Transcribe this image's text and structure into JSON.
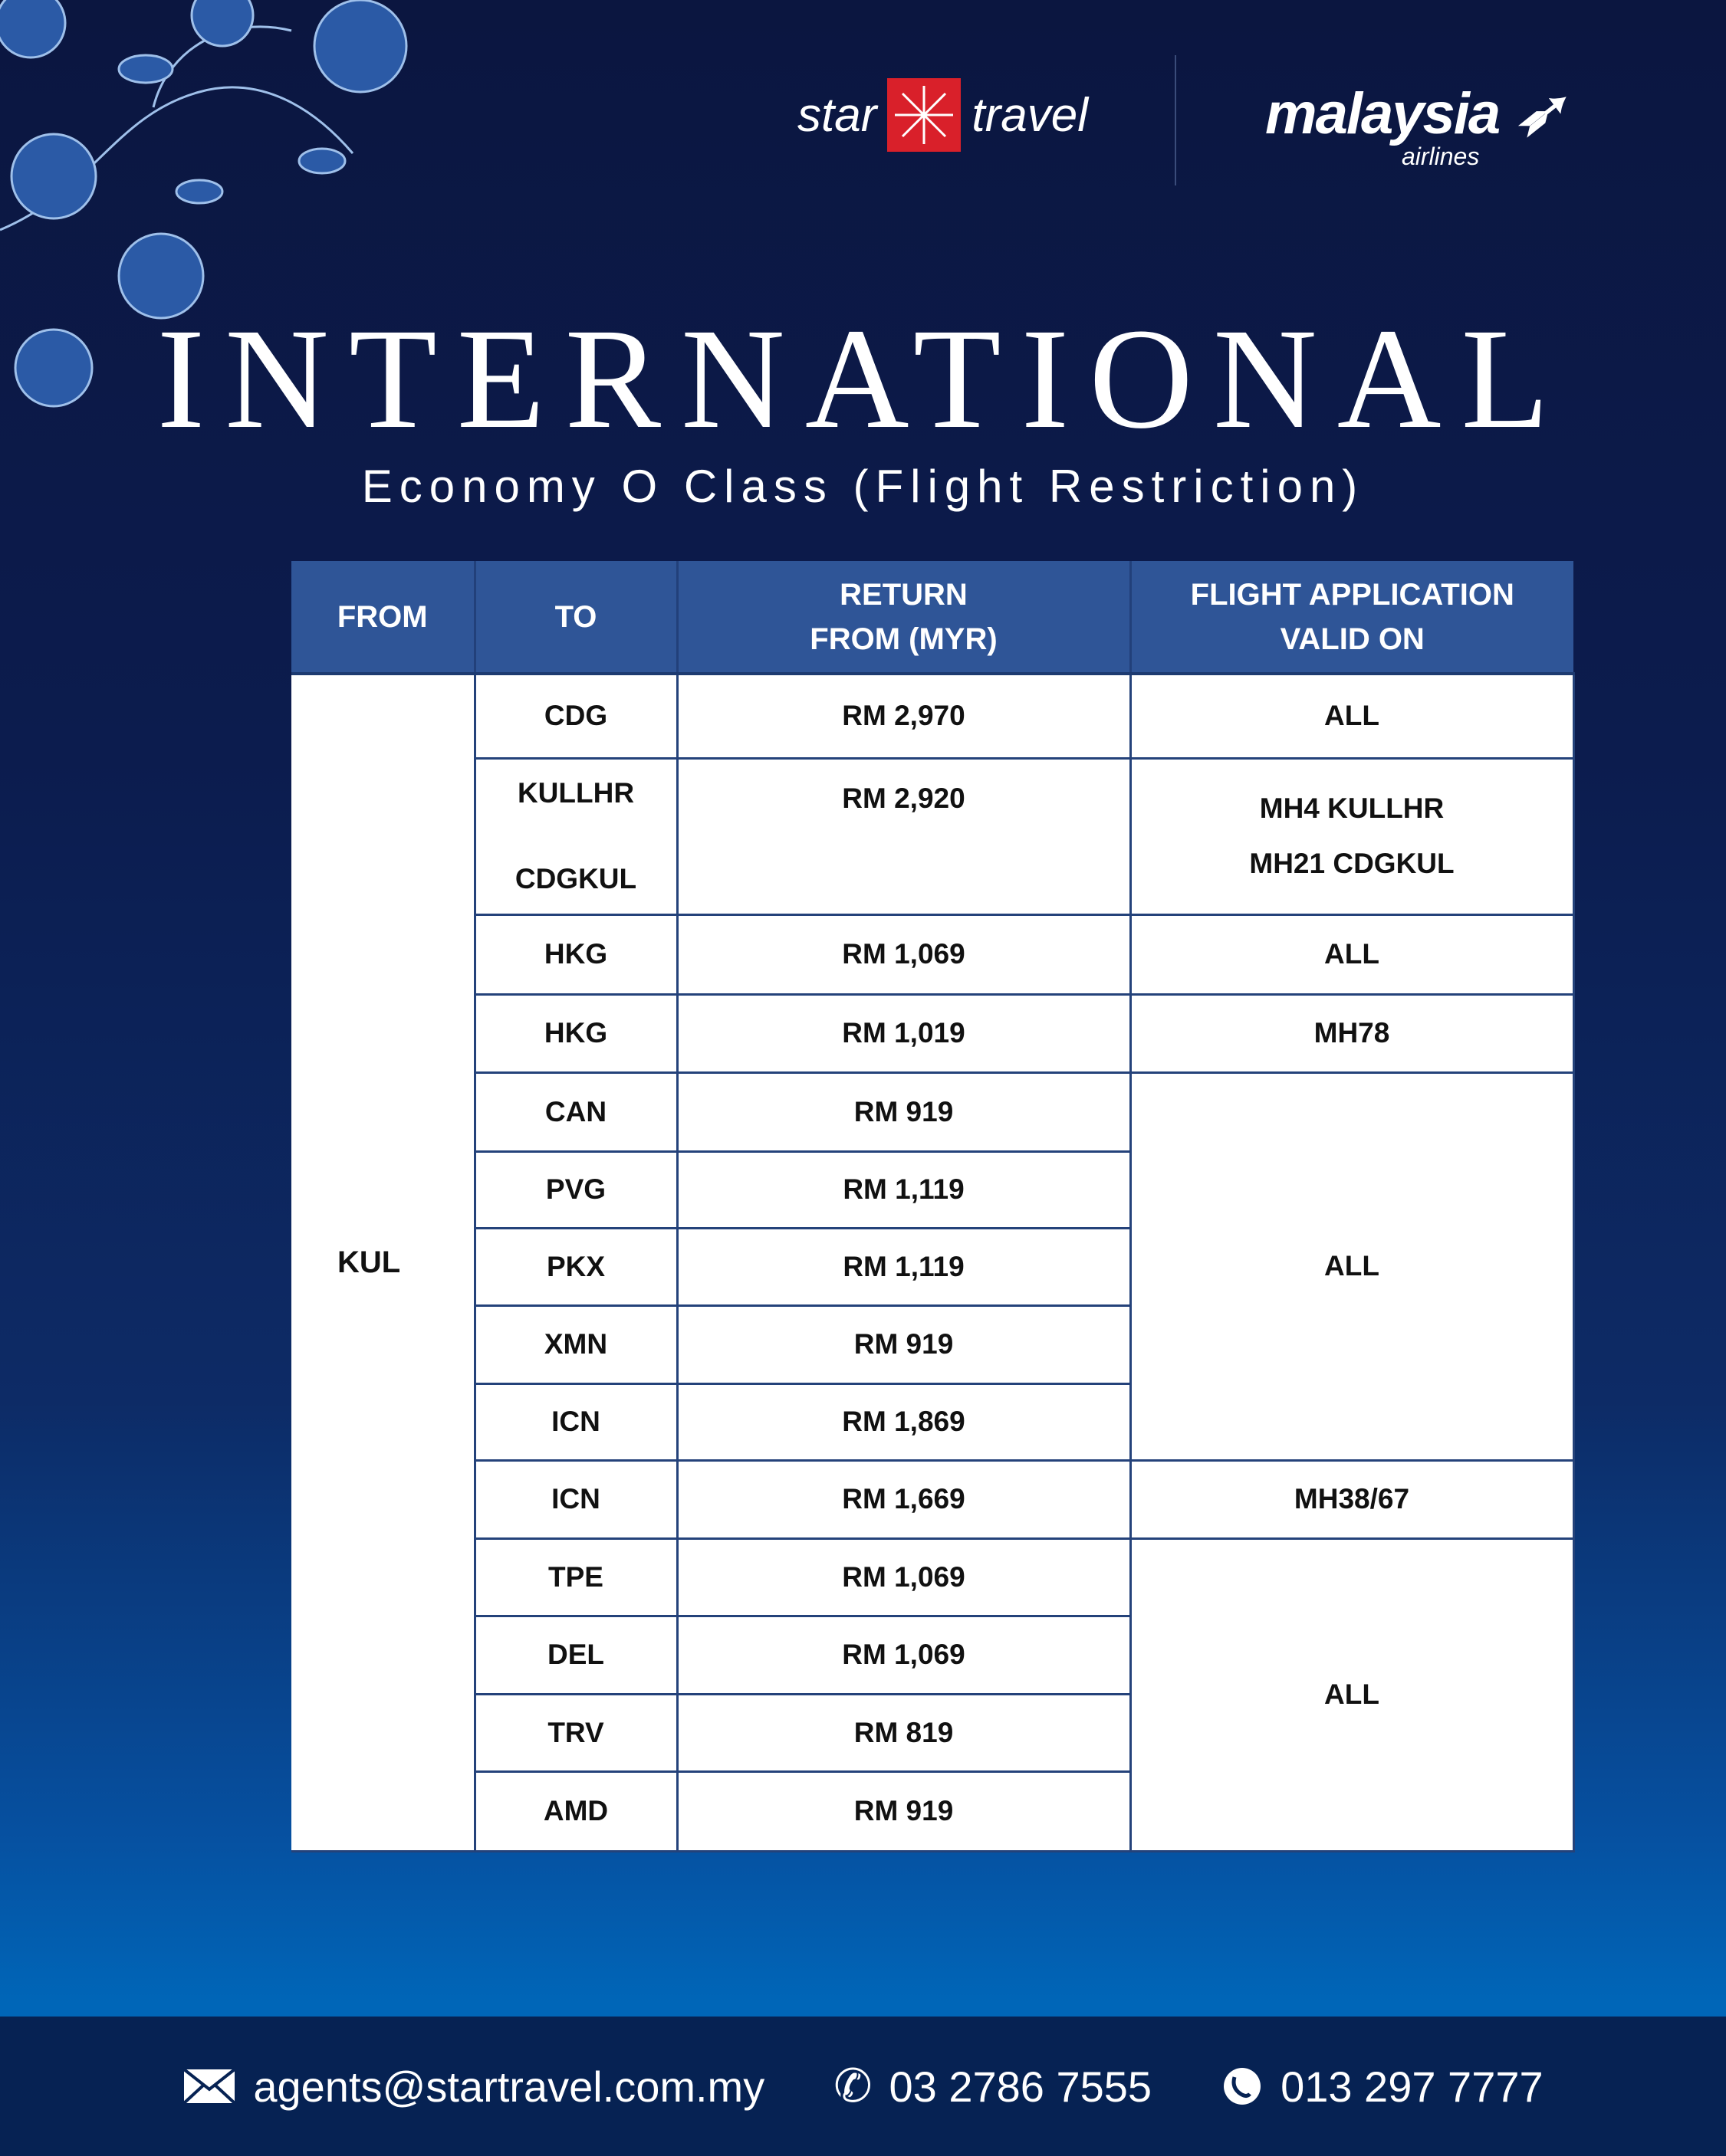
{
  "brand": {
    "star_travel": [
      "star",
      "travel"
    ],
    "malaysia": "malaysia",
    "malaysia_sub": "airlines",
    "accent": "#d9202a"
  },
  "title": "INTERNATIONAL",
  "subtitle": "Economy O Class (Flight Restriction)",
  "table": {
    "headers": [
      "FROM",
      "TO",
      "RETURN FROM (MYR)",
      "FLIGHT APPLICATION VALID ON"
    ],
    "from": "KUL",
    "rows": [
      {
        "to": "CDG",
        "price": "RM 2,970",
        "valid": "ALL"
      },
      {
        "to": "KULLHR",
        "to2": "CDGKUL",
        "price": "RM 2,920",
        "valid": "MH4 KULLHR",
        "valid2": "MH21 CDGKUL"
      },
      {
        "to": "HKG",
        "price": "RM 1,069",
        "valid": "ALL"
      },
      {
        "to": "HKG",
        "price": "RM 1,019",
        "valid": "MH78"
      },
      {
        "to": "CAN",
        "price": "RM 919",
        "valid": "ALL"
      },
      {
        "to": "PVG",
        "price": "RM 1,119"
      },
      {
        "to": "PKX",
        "price": "RM 1,119"
      },
      {
        "to": "XMN",
        "price": "RM 919"
      },
      {
        "to": "ICN",
        "price": "RM 1,869"
      },
      {
        "to": "ICN",
        "price": "RM 1,669",
        "valid": "MH38/67"
      },
      {
        "to": "TPE",
        "price": "RM 1,069",
        "valid": "ALL"
      },
      {
        "to": "DEL",
        "price": "RM 1,069"
      },
      {
        "to": "TRV",
        "price": "RM 819"
      },
      {
        "to": "AMD",
        "price": "RM 919"
      }
    ]
  },
  "footer": {
    "email": "agents@startravel.com.my",
    "phone": "03 2786 7555",
    "whatsapp": "013 297 7777"
  }
}
